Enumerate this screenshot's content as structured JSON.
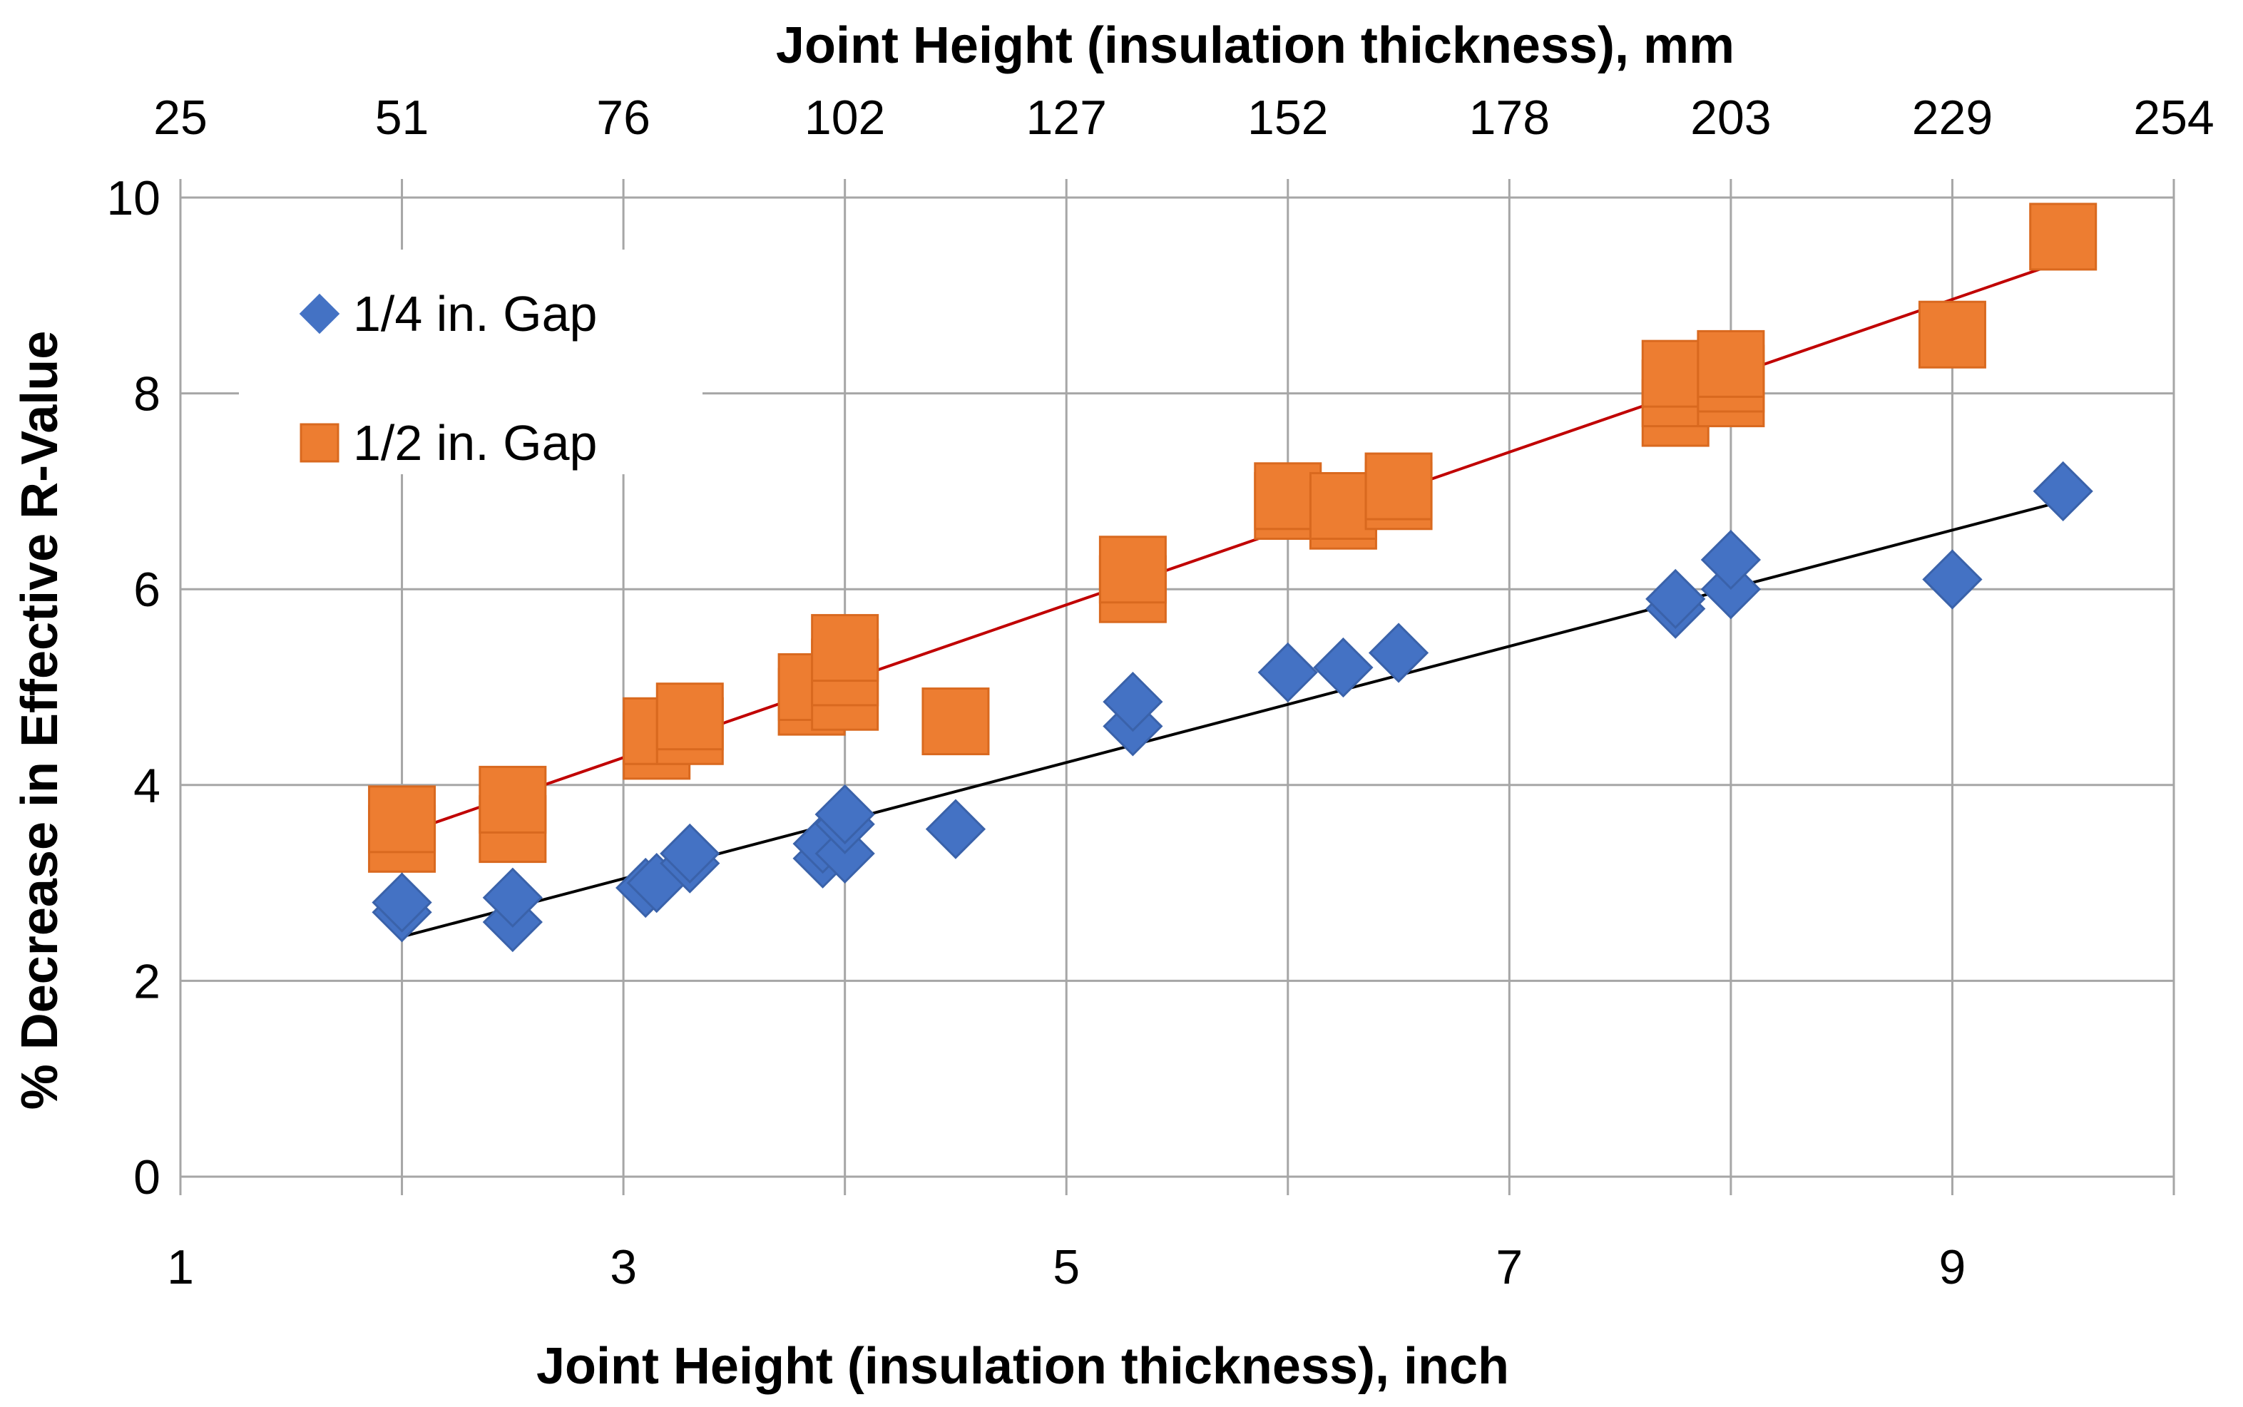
{
  "chart_data": {
    "type": "scatter",
    "xlabel": "Joint Height (insulation thickness), inch",
    "ylabel": "% Decrease in Effective R-Value",
    "x2label": "Joint Height (insulation thickness), mm",
    "xlim": [
      1,
      10
    ],
    "ylim": [
      0,
      10
    ],
    "x_ticks": [
      "1",
      "3",
      "5",
      "7",
      "9"
    ],
    "x_tick_values": [
      1,
      3,
      5,
      7,
      9
    ],
    "y_ticks": [
      "0",
      "2",
      "4",
      "6",
      "8",
      "10"
    ],
    "y_tick_values": [
      0,
      2,
      4,
      6,
      8,
      10
    ],
    "x2_ticks": [
      "25",
      "51",
      "76",
      "102",
      "127",
      "152",
      "178",
      "203",
      "229",
      "254"
    ],
    "x2_tick_values": [
      1,
      2,
      3,
      4,
      5,
      6,
      7,
      8,
      9,
      10
    ],
    "grid": true,
    "legend_position": "top-left",
    "series": [
      {
        "name": "1/4 in. Gap",
        "marker": "diamond",
        "color": "#4472C4",
        "points": [
          [
            2,
            2.7
          ],
          [
            2,
            2.8
          ],
          [
            2.5,
            2.6
          ],
          [
            2.5,
            2.85
          ],
          [
            3.1,
            2.95
          ],
          [
            3.15,
            3.0
          ],
          [
            3.3,
            3.2
          ],
          [
            3.3,
            3.3
          ],
          [
            3.9,
            3.25
          ],
          [
            3.9,
            3.4
          ],
          [
            4,
            3.3
          ],
          [
            4,
            3.6
          ],
          [
            4,
            3.7
          ],
          [
            4.5,
            3.55
          ],
          [
            5.3,
            4.6
          ],
          [
            5.3,
            4.85
          ],
          [
            6,
            5.15
          ],
          [
            6.25,
            5.2
          ],
          [
            6.5,
            5.35
          ],
          [
            7.75,
            5.8
          ],
          [
            7.75,
            5.9
          ],
          [
            8,
            6.0
          ],
          [
            8,
            6.3
          ],
          [
            9,
            6.1
          ],
          [
            9.5,
            7.0
          ]
        ],
        "trend": {
          "x": [
            2,
            9.5
          ],
          "y": [
            2.45,
            6.9
          ],
          "color": "#000000"
        }
      },
      {
        "name": "1/2 in. Gap",
        "marker": "square",
        "color": "#ED7D31",
        "points": [
          [
            2,
            3.45
          ],
          [
            2,
            3.65
          ],
          [
            2.5,
            3.55
          ],
          [
            2.5,
            3.85
          ],
          [
            3.15,
            4.4
          ],
          [
            3.15,
            4.55
          ],
          [
            3.3,
            4.55
          ],
          [
            3.3,
            4.7
          ],
          [
            3.85,
            4.85
          ],
          [
            3.85,
            5.0
          ],
          [
            4,
            4.9
          ],
          [
            4,
            5.15
          ],
          [
            4,
            5.4
          ],
          [
            4.5,
            4.65
          ],
          [
            5.3,
            6.0
          ],
          [
            5.3,
            6.2
          ],
          [
            6,
            6.85
          ],
          [
            6,
            6.95
          ],
          [
            6.25,
            6.75
          ],
          [
            6.25,
            6.85
          ],
          [
            6.5,
            6.95
          ],
          [
            6.5,
            7.05
          ],
          [
            7.75,
            7.8
          ],
          [
            7.75,
            8.0
          ],
          [
            7.75,
            8.2
          ],
          [
            8,
            8.0
          ],
          [
            8,
            8.15
          ],
          [
            8,
            8.3
          ],
          [
            9,
            8.6
          ],
          [
            9.5,
            9.6
          ]
        ],
        "trend": {
          "x": [
            2,
            9.5
          ],
          "y": [
            3.5,
            9.35
          ],
          "color": "#C00000"
        }
      }
    ]
  }
}
